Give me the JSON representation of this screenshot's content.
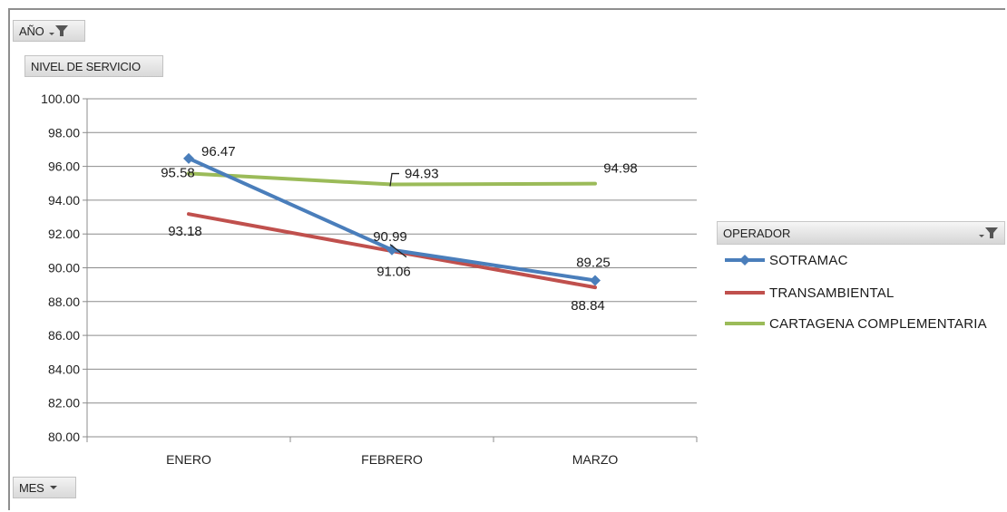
{
  "filters": {
    "year_label": "AÑO",
    "values_label": "NIVEL DE SERVICIO",
    "month_label": "MES"
  },
  "legend": {
    "header": "OPERADOR"
  },
  "chart_data": {
    "type": "line",
    "categories": [
      "ENERO",
      "FEBRERO",
      "MARZO"
    ],
    "series": [
      {
        "name": "SOTRAMAC",
        "values": [
          96.47,
          91.06,
          89.25
        ],
        "color": "#4a7ebb",
        "marker": "diamond"
      },
      {
        "name": "TRANSAMBIENTAL",
        "values": [
          93.18,
          90.99,
          88.84
        ],
        "color": "#c0504d",
        "marker": "none"
      },
      {
        "name": "CARTAGENA COMPLEMENTARIA",
        "values": [
          95.58,
          94.93,
          94.98
        ],
        "color": "#9bbb59",
        "marker": "none"
      }
    ],
    "ylim": [
      80,
      100
    ],
    "yticks": [
      "80.00",
      "82.00",
      "84.00",
      "86.00",
      "88.00",
      "90.00",
      "92.00",
      "94.00",
      "96.00",
      "98.00",
      "100.00"
    ],
    "grid": true,
    "legend_position": "right"
  }
}
